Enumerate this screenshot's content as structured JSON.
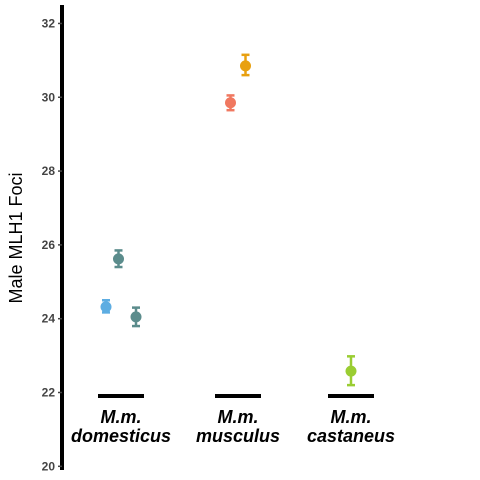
{
  "chart_data": {
    "type": "scatter",
    "title": "",
    "xlabel": "",
    "ylabel": "Male MLH1 Foci",
    "ylim": [
      19.9,
      32.5
    ],
    "y_ticks": [
      "20",
      "22",
      "24",
      "26",
      "28",
      "30",
      "32"
    ],
    "grid": false,
    "legend": "none",
    "groups": [
      {
        "label_line1": "M.m.",
        "label_line2": "domesticus"
      },
      {
        "label_line1": "M.m.",
        "label_line2": "musculus"
      },
      {
        "label_line1": "M.m.",
        "label_line2": "castaneus"
      }
    ],
    "points": [
      {
        "group": 0,
        "offset": -0.3,
        "mean": 24.32,
        "low": 24.17,
        "high": 24.5,
        "color": "#5DADE2"
      },
      {
        "group": 0,
        "offset": -0.05,
        "mean": 25.62,
        "low": 25.4,
        "high": 25.85,
        "color": "#5B8C8C"
      },
      {
        "group": 0,
        "offset": 0.3,
        "mean": 24.05,
        "low": 23.8,
        "high": 24.3,
        "color": "#5B8C8C"
      },
      {
        "group": 1,
        "offset": -0.15,
        "mean": 29.85,
        "low": 29.65,
        "high": 30.05,
        "color": "#F07860"
      },
      {
        "group": 1,
        "offset": 0.15,
        "mean": 30.85,
        "low": 30.6,
        "high": 31.15,
        "color": "#E8A010"
      },
      {
        "group": 2,
        "offset": 0.0,
        "mean": 22.58,
        "low": 22.2,
        "high": 22.98,
        "color": "#9ACD32"
      }
    ]
  }
}
